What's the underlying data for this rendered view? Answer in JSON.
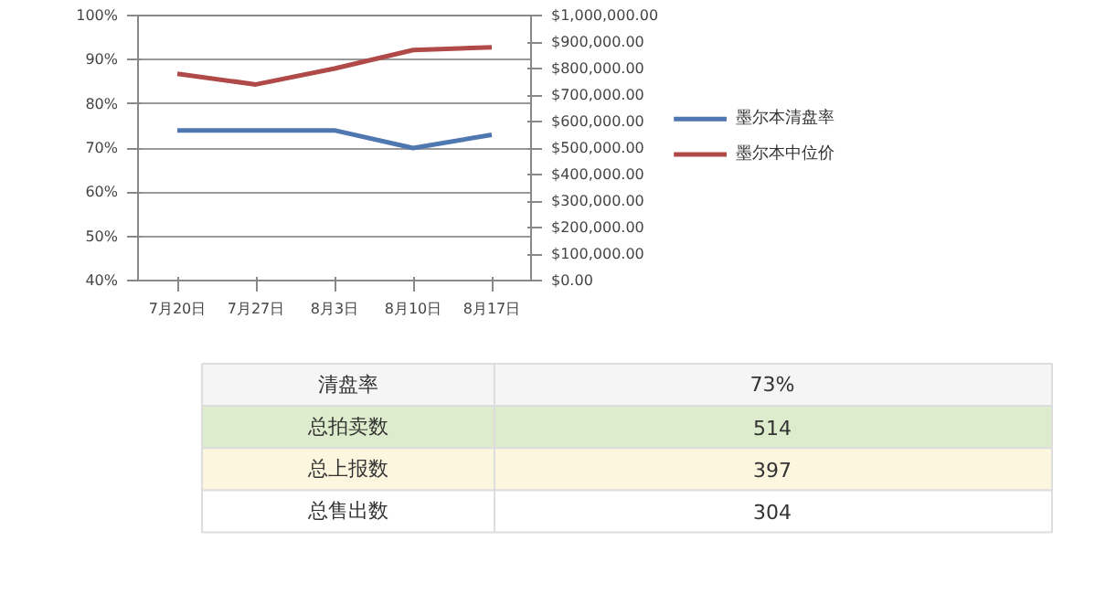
{
  "chart_data": {
    "type": "line",
    "categories": [
      "7月20日",
      "7月27日",
      "8月3日",
      "8月10日",
      "8月17日"
    ],
    "series": [
      {
        "name": "墨尔本清盘率",
        "color": "#4f77b0",
        "values": [
          0.74,
          0.74,
          0.74,
          0.7,
          0.73
        ]
      },
      {
        "name": "墨尔本中位价",
        "color": "#b04a48",
        "values": [
          780000,
          740000,
          800000,
          870000,
          880000
        ],
        "axis": "y2"
      }
    ],
    "ylim": [
      0.4,
      1.0
    ],
    "yticks": [
      {
        "value": 0.4,
        "label": "40%"
      },
      {
        "value": 0.5,
        "label": "50%"
      },
      {
        "value": 0.6,
        "label": "60%"
      },
      {
        "value": 0.7,
        "label": "70%"
      },
      {
        "value": 0.8,
        "label": "80%"
      },
      {
        "value": 0.9,
        "label": "90%"
      },
      {
        "value": 1.0,
        "label": "100%"
      }
    ],
    "y2lim": [
      0,
      1000000
    ],
    "y2ticks": [
      {
        "value": 0,
        "label": "$0.00"
      },
      {
        "value": 100000,
        "label": "$100,000.00"
      },
      {
        "value": 200000,
        "label": "$200,000.00"
      },
      {
        "value": 300000,
        "label": "$300,000.00"
      },
      {
        "value": 400000,
        "label": "$400,000.00"
      },
      {
        "value": 500000,
        "label": "$500,000.00"
      },
      {
        "value": 600000,
        "label": "$600,000.00"
      },
      {
        "value": 700000,
        "label": "$700,000.00"
      },
      {
        "value": 800000,
        "label": "$800,000.00"
      },
      {
        "value": 900000,
        "label": "$900,000.00"
      },
      {
        "value": 1000000,
        "label": "$1,000,000.00"
      }
    ],
    "grid": "y",
    "legend": "right",
    "annotations": [
      "清盘率",
      "73%",
      "总拍卖数",
      "514",
      "总上报数",
      "397",
      "总售出数",
      "304"
    ]
  }
}
